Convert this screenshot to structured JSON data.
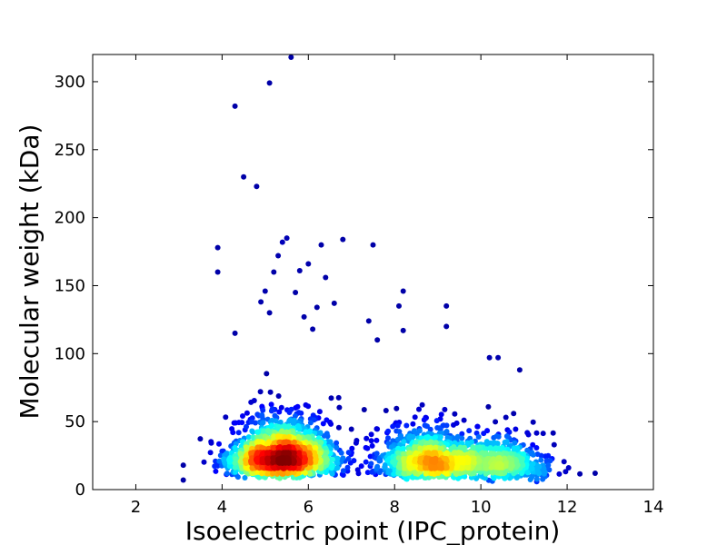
{
  "chart_data": {
    "type": "scatter",
    "title": "",
    "xlabel": "Isoelectric point (IPC_protein)",
    "ylabel": "Molecular weight (kDa)",
    "xlim": [
      1,
      14
    ],
    "ylim": [
      0,
      320
    ],
    "xticks": [
      2,
      4,
      6,
      8,
      10,
      12,
      14
    ],
    "yticks": [
      0,
      50,
      100,
      150,
      200,
      250,
      300
    ],
    "grid": false,
    "legend": "none",
    "colormap": "jet (point density: blue = low, red = high)",
    "density_clusters": [
      {
        "x": 5.4,
        "y": 25,
        "weight": 0.55
      },
      {
        "x": 8.8,
        "y": 22,
        "weight": 0.28
      },
      {
        "x": 10.4,
        "y": 20,
        "weight": 0.17
      }
    ],
    "outliers": [
      [
        5.6,
        318
      ],
      [
        5.1,
        299
      ],
      [
        4.3,
        282
      ],
      [
        4.5,
        230
      ],
      [
        4.8,
        223
      ],
      [
        3.9,
        178
      ],
      [
        3.9,
        160
      ],
      [
        5.5,
        185
      ],
      [
        5.3,
        172
      ],
      [
        5.4,
        182
      ],
      [
        6.3,
        180
      ],
      [
        6.8,
        184
      ],
      [
        7.5,
        180
      ],
      [
        6.0,
        166
      ],
      [
        5.8,
        161
      ],
      [
        6.4,
        156
      ],
      [
        5.2,
        160
      ],
      [
        5.0,
        146
      ],
      [
        8.2,
        146
      ],
      [
        4.9,
        138
      ],
      [
        5.7,
        145
      ],
      [
        6.6,
        137
      ],
      [
        8.1,
        135
      ],
      [
        9.2,
        135
      ],
      [
        6.2,
        134
      ],
      [
        5.1,
        130
      ],
      [
        5.9,
        127
      ],
      [
        7.4,
        124
      ],
      [
        9.2,
        120
      ],
      [
        6.1,
        118
      ],
      [
        8.2,
        117
      ],
      [
        7.6,
        110
      ],
      [
        4.3,
        115
      ],
      [
        10.2,
        97
      ],
      [
        10.4,
        97
      ],
      [
        10.9,
        88
      ],
      [
        12.65,
        12
      ],
      [
        11.7,
        33
      ],
      [
        11.4,
        25
      ],
      [
        3.1,
        18
      ],
      [
        3.1,
        7
      ]
    ]
  }
}
